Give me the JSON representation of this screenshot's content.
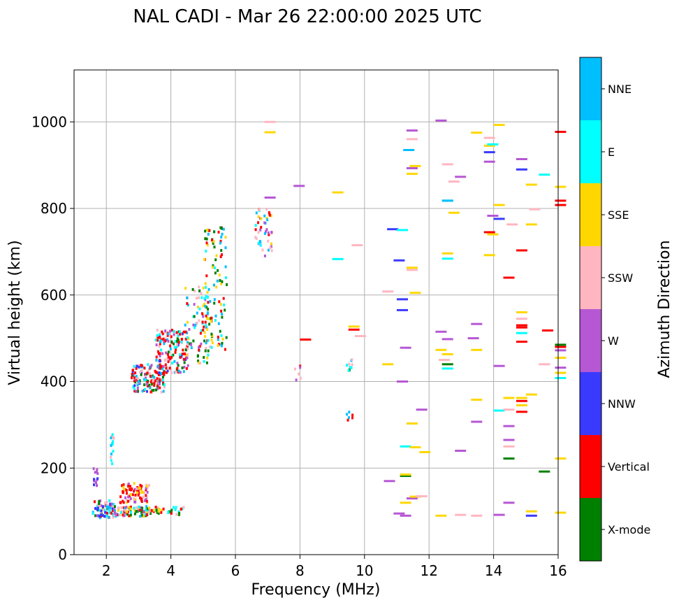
{
  "chart_data": {
    "type": "scatter",
    "title": "NAL CADI - Mar 26 22:00:00 2025 UTC",
    "xlabel": "Frequency (MHz)",
    "ylabel": "Virtual height (km)",
    "xlim": [
      1.0,
      16.0
    ],
    "ylim": [
      0,
      1120
    ],
    "xticks": [
      2,
      4,
      6,
      8,
      10,
      12,
      14,
      16
    ],
    "yticks": [
      0,
      200,
      400,
      600,
      800,
      1000
    ],
    "grid": true,
    "colorbar": {
      "label": "Azimuth Direction",
      "categories": [
        {
          "name": "X-mode",
          "color": "#008000"
        },
        {
          "name": "Vertical",
          "color": "#ff0000"
        },
        {
          "name": "NNW",
          "color": "#3a3aff"
        },
        {
          "name": "W",
          "color": "#b657d4"
        },
        {
          "name": "SSW",
          "color": "#ffb6c1"
        },
        {
          "name": "SSE",
          "color": "#ffd700"
        },
        {
          "name": "E",
          "color": "#00ffff"
        },
        {
          "name": "NNE",
          "color": "#00bfff"
        }
      ]
    },
    "clusters": [
      {
        "x0": 1.55,
        "x1": 1.7,
        "y0": 150,
        "y1": 205,
        "n": 14,
        "cats": [
          3,
          3,
          3,
          2
        ]
      },
      {
        "x0": 1.55,
        "x1": 2.2,
        "y0": 85,
        "y1": 125,
        "n": 70,
        "cats": [
          1,
          3,
          4,
          6,
          7,
          0,
          2
        ]
      },
      {
        "x0": 2.1,
        "x1": 2.2,
        "y0": 205,
        "y1": 285,
        "n": 14,
        "cats": [
          6,
          7,
          4
        ]
      },
      {
        "x0": 2.2,
        "x1": 3.3,
        "y0": 88,
        "y1": 112,
        "n": 90,
        "cats": [
          1,
          4,
          3,
          0,
          5,
          6,
          7
        ]
      },
      {
        "x0": 2.4,
        "x1": 3.3,
        "y0": 120,
        "y1": 165,
        "n": 80,
        "cats": [
          1,
          1,
          1,
          3,
          4,
          5
        ]
      },
      {
        "x0": 3.2,
        "x1": 4.4,
        "y0": 92,
        "y1": 110,
        "n": 40,
        "cats": [
          0,
          5,
          4,
          1,
          6
        ]
      },
      {
        "x0": 2.75,
        "x1": 3.8,
        "y0": 375,
        "y1": 440,
        "n": 140,
        "cats": [
          1,
          1,
          1,
          6,
          7,
          4,
          3,
          2,
          0
        ]
      },
      {
        "x0": 3.5,
        "x1": 4.5,
        "y0": 420,
        "y1": 520,
        "n": 150,
        "cats": [
          1,
          1,
          1,
          6,
          7,
          0,
          4,
          3,
          2
        ]
      },
      {
        "x0": 4.4,
        "x1": 5.2,
        "y0": 440,
        "y1": 620,
        "n": 90,
        "cats": [
          0,
          6,
          7,
          1,
          4,
          5,
          3
        ]
      },
      {
        "x0": 5.0,
        "x1": 5.7,
        "y0": 470,
        "y1": 760,
        "n": 100,
        "cats": [
          0,
          0,
          6,
          7,
          1,
          5
        ]
      },
      {
        "x0": 6.55,
        "x1": 7.1,
        "y0": 690,
        "y1": 800,
        "n": 45,
        "cats": [
          7,
          6,
          1,
          4,
          5,
          3
        ]
      },
      {
        "x0": 7.8,
        "x1": 8.0,
        "y0": 400,
        "y1": 440,
        "n": 6,
        "cats": [
          1,
          4,
          3
        ]
      },
      {
        "x0": 9.4,
        "x1": 9.6,
        "y0": 410,
        "y1": 455,
        "n": 10,
        "cats": [
          4,
          6,
          7,
          0
        ]
      },
      {
        "x0": 9.4,
        "x1": 9.6,
        "y0": 300,
        "y1": 330,
        "n": 6,
        "cats": [
          1,
          7
        ]
      }
    ],
    "segments": [
      [
        6.9,
        1000,
        4
      ],
      [
        6.9,
        976,
        5
      ],
      [
        7.8,
        852,
        3
      ],
      [
        6.9,
        825,
        3
      ],
      [
        9.0,
        837,
        5
      ],
      [
        9.5,
        527,
        5
      ],
      [
        9.5,
        520,
        1
      ],
      [
        9.7,
        505,
        4
      ],
      [
        9.6,
        715,
        4
      ],
      [
        9.0,
        683,
        6
      ],
      [
        8.0,
        497,
        1
      ],
      [
        10.55,
        608,
        4
      ],
      [
        10.55,
        440,
        5
      ],
      [
        10.7,
        752,
        2
      ],
      [
        11.0,
        750,
        6
      ],
      [
        10.9,
        680,
        2
      ],
      [
        11.0,
        590,
        2
      ],
      [
        11.0,
        565,
        2
      ],
      [
        11.1,
        478,
        3
      ],
      [
        11.0,
        400,
        3
      ],
      [
        11.3,
        980,
        3
      ],
      [
        11.3,
        960,
        4
      ],
      [
        11.2,
        935,
        7
      ],
      [
        11.3,
        893,
        3
      ],
      [
        11.4,
        898,
        5
      ],
      [
        11.3,
        880,
        5
      ],
      [
        11.3,
        658,
        4
      ],
      [
        11.3,
        663,
        5
      ],
      [
        11.4,
        605,
        5
      ],
      [
        11.6,
        335,
        3
      ],
      [
        11.3,
        303,
        5
      ],
      [
        11.1,
        250,
        6
      ],
      [
        11.4,
        248,
        5
      ],
      [
        11.7,
        237,
        5
      ],
      [
        10.6,
        170,
        3
      ],
      [
        11.1,
        182,
        0
      ],
      [
        11.1,
        185,
        5
      ],
      [
        11.3,
        130,
        3
      ],
      [
        11.4,
        134,
        5
      ],
      [
        11.6,
        135,
        4
      ],
      [
        11.1,
        120,
        5
      ],
      [
        10.9,
        95,
        3
      ],
      [
        11.1,
        90,
        3
      ],
      [
        12.2,
        1003,
        3
      ],
      [
        13.3,
        975,
        5
      ],
      [
        13.7,
        963,
        4
      ],
      [
        14.0,
        993,
        5
      ],
      [
        13.7,
        945,
        5
      ],
      [
        13.8,
        948,
        6
      ],
      [
        13.7,
        930,
        2
      ],
      [
        13.7,
        908,
        3
      ],
      [
        12.4,
        902,
        4
      ],
      [
        12.6,
        862,
        4
      ],
      [
        12.8,
        873,
        3
      ],
      [
        14.7,
        914,
        3
      ],
      [
        14.7,
        890,
        2
      ],
      [
        15.4,
        878,
        6
      ],
      [
        15.0,
        855,
        5
      ],
      [
        15.9,
        977,
        1
      ],
      [
        15.9,
        850,
        5
      ],
      [
        15.9,
        818,
        1
      ],
      [
        15.9,
        808,
        1
      ],
      [
        15.1,
        798,
        4
      ],
      [
        14.0,
        808,
        5
      ],
      [
        13.8,
        783,
        3
      ],
      [
        14.0,
        776,
        2
      ],
      [
        14.4,
        763,
        4
      ],
      [
        15.0,
        763,
        5
      ],
      [
        12.4,
        818,
        7
      ],
      [
        12.6,
        790,
        5
      ],
      [
        13.7,
        745,
        1
      ],
      [
        13.8,
        740,
        5
      ],
      [
        14.7,
        703,
        1
      ],
      [
        13.7,
        692,
        5
      ],
      [
        12.4,
        696,
        5
      ],
      [
        12.4,
        684,
        6
      ],
      [
        14.3,
        640,
        1
      ],
      [
        14.7,
        560,
        5
      ],
      [
        14.7,
        530,
        1
      ],
      [
        14.7,
        525,
        1
      ],
      [
        14.7,
        545,
        4
      ],
      [
        14.7,
        512,
        6
      ],
      [
        14.7,
        492,
        1
      ],
      [
        15.5,
        518,
        1
      ],
      [
        15.9,
        480,
        1
      ],
      [
        15.9,
        485,
        0
      ],
      [
        15.9,
        472,
        3
      ],
      [
        15.9,
        455,
        5
      ],
      [
        15.4,
        440,
        4
      ],
      [
        15.9,
        432,
        3
      ],
      [
        15.9,
        420,
        5
      ],
      [
        15.9,
        408,
        6
      ],
      [
        13.3,
        533,
        3
      ],
      [
        13.2,
        500,
        3
      ],
      [
        13.3,
        473,
        5
      ],
      [
        12.2,
        515,
        3
      ],
      [
        12.4,
        498,
        3
      ],
      [
        12.2,
        473,
        5
      ],
      [
        12.4,
        463,
        5
      ],
      [
        12.3,
        450,
        4
      ],
      [
        12.4,
        440,
        0
      ],
      [
        12.4,
        430,
        6
      ],
      [
        14.0,
        436,
        3
      ],
      [
        14.3,
        362,
        5
      ],
      [
        14.7,
        362,
        5
      ],
      [
        14.7,
        355,
        1
      ],
      [
        15.0,
        370,
        5
      ],
      [
        14.7,
        345,
        5
      ],
      [
        14.7,
        330,
        1
      ],
      [
        13.3,
        358,
        5
      ],
      [
        14.0,
        333,
        6
      ],
      [
        14.3,
        335,
        4
      ],
      [
        13.3,
        307,
        3
      ],
      [
        14.3,
        297,
        3
      ],
      [
        14.3,
        265,
        3
      ],
      [
        14.3,
        250,
        4
      ],
      [
        12.8,
        240,
        3
      ],
      [
        14.3,
        222,
        0
      ],
      [
        15.4,
        192,
        0
      ],
      [
        15.9,
        222,
        5
      ],
      [
        14.3,
        120,
        3
      ],
      [
        15.0,
        100,
        5
      ],
      [
        15.9,
        97,
        5
      ],
      [
        15.0,
        90,
        2
      ],
      [
        14.0,
        92,
        3
      ],
      [
        12.2,
        90,
        5
      ],
      [
        12.8,
        92,
        4
      ],
      [
        13.3,
        90,
        4
      ],
      [
        12.4,
        818,
        7
      ]
    ]
  }
}
